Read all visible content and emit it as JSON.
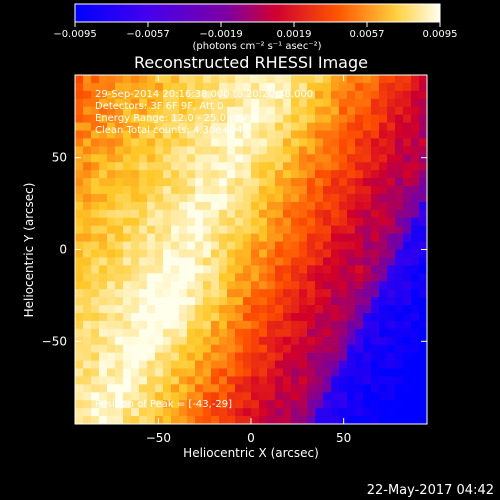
{
  "chart_data": {
    "type": "heatmap",
    "title": "Reconstructed RHESSI Image",
    "xlabel": "Heliocentric X (arcsec)",
    "ylabel": "Heliocentric Y (arcsec)",
    "xlim": [
      -95,
      95
    ],
    "ylim": [
      -95,
      95
    ],
    "xticks": [
      -50,
      0,
      50
    ],
    "yticks": [
      50,
      0,
      -50
    ],
    "colorbar": {
      "min": -0.0095,
      "max": 0.0095,
      "ticks": [
        "−0.0095",
        "−0.0057",
        "−0.0019",
        "0.0019",
        "0.0057",
        "0.0095"
      ],
      "units_text": "(photons cm⁻² s⁻¹ asec⁻²)"
    },
    "annotations": [
      "29-Sep-2014 20:16:38.000 to 20:20:38.000",
      "Detectors: 3F 6F 9F, Att 0",
      "Energy Range: 12.0 - 25.0 keV",
      "Clean    Total counts: 4.30e+04"
    ],
    "peak_label": "Position of Peak = [-43,-29]",
    "peak": [
      -43,
      -29
    ]
  },
  "footer": {
    "timestamp": "22-May-2017 04:42"
  }
}
